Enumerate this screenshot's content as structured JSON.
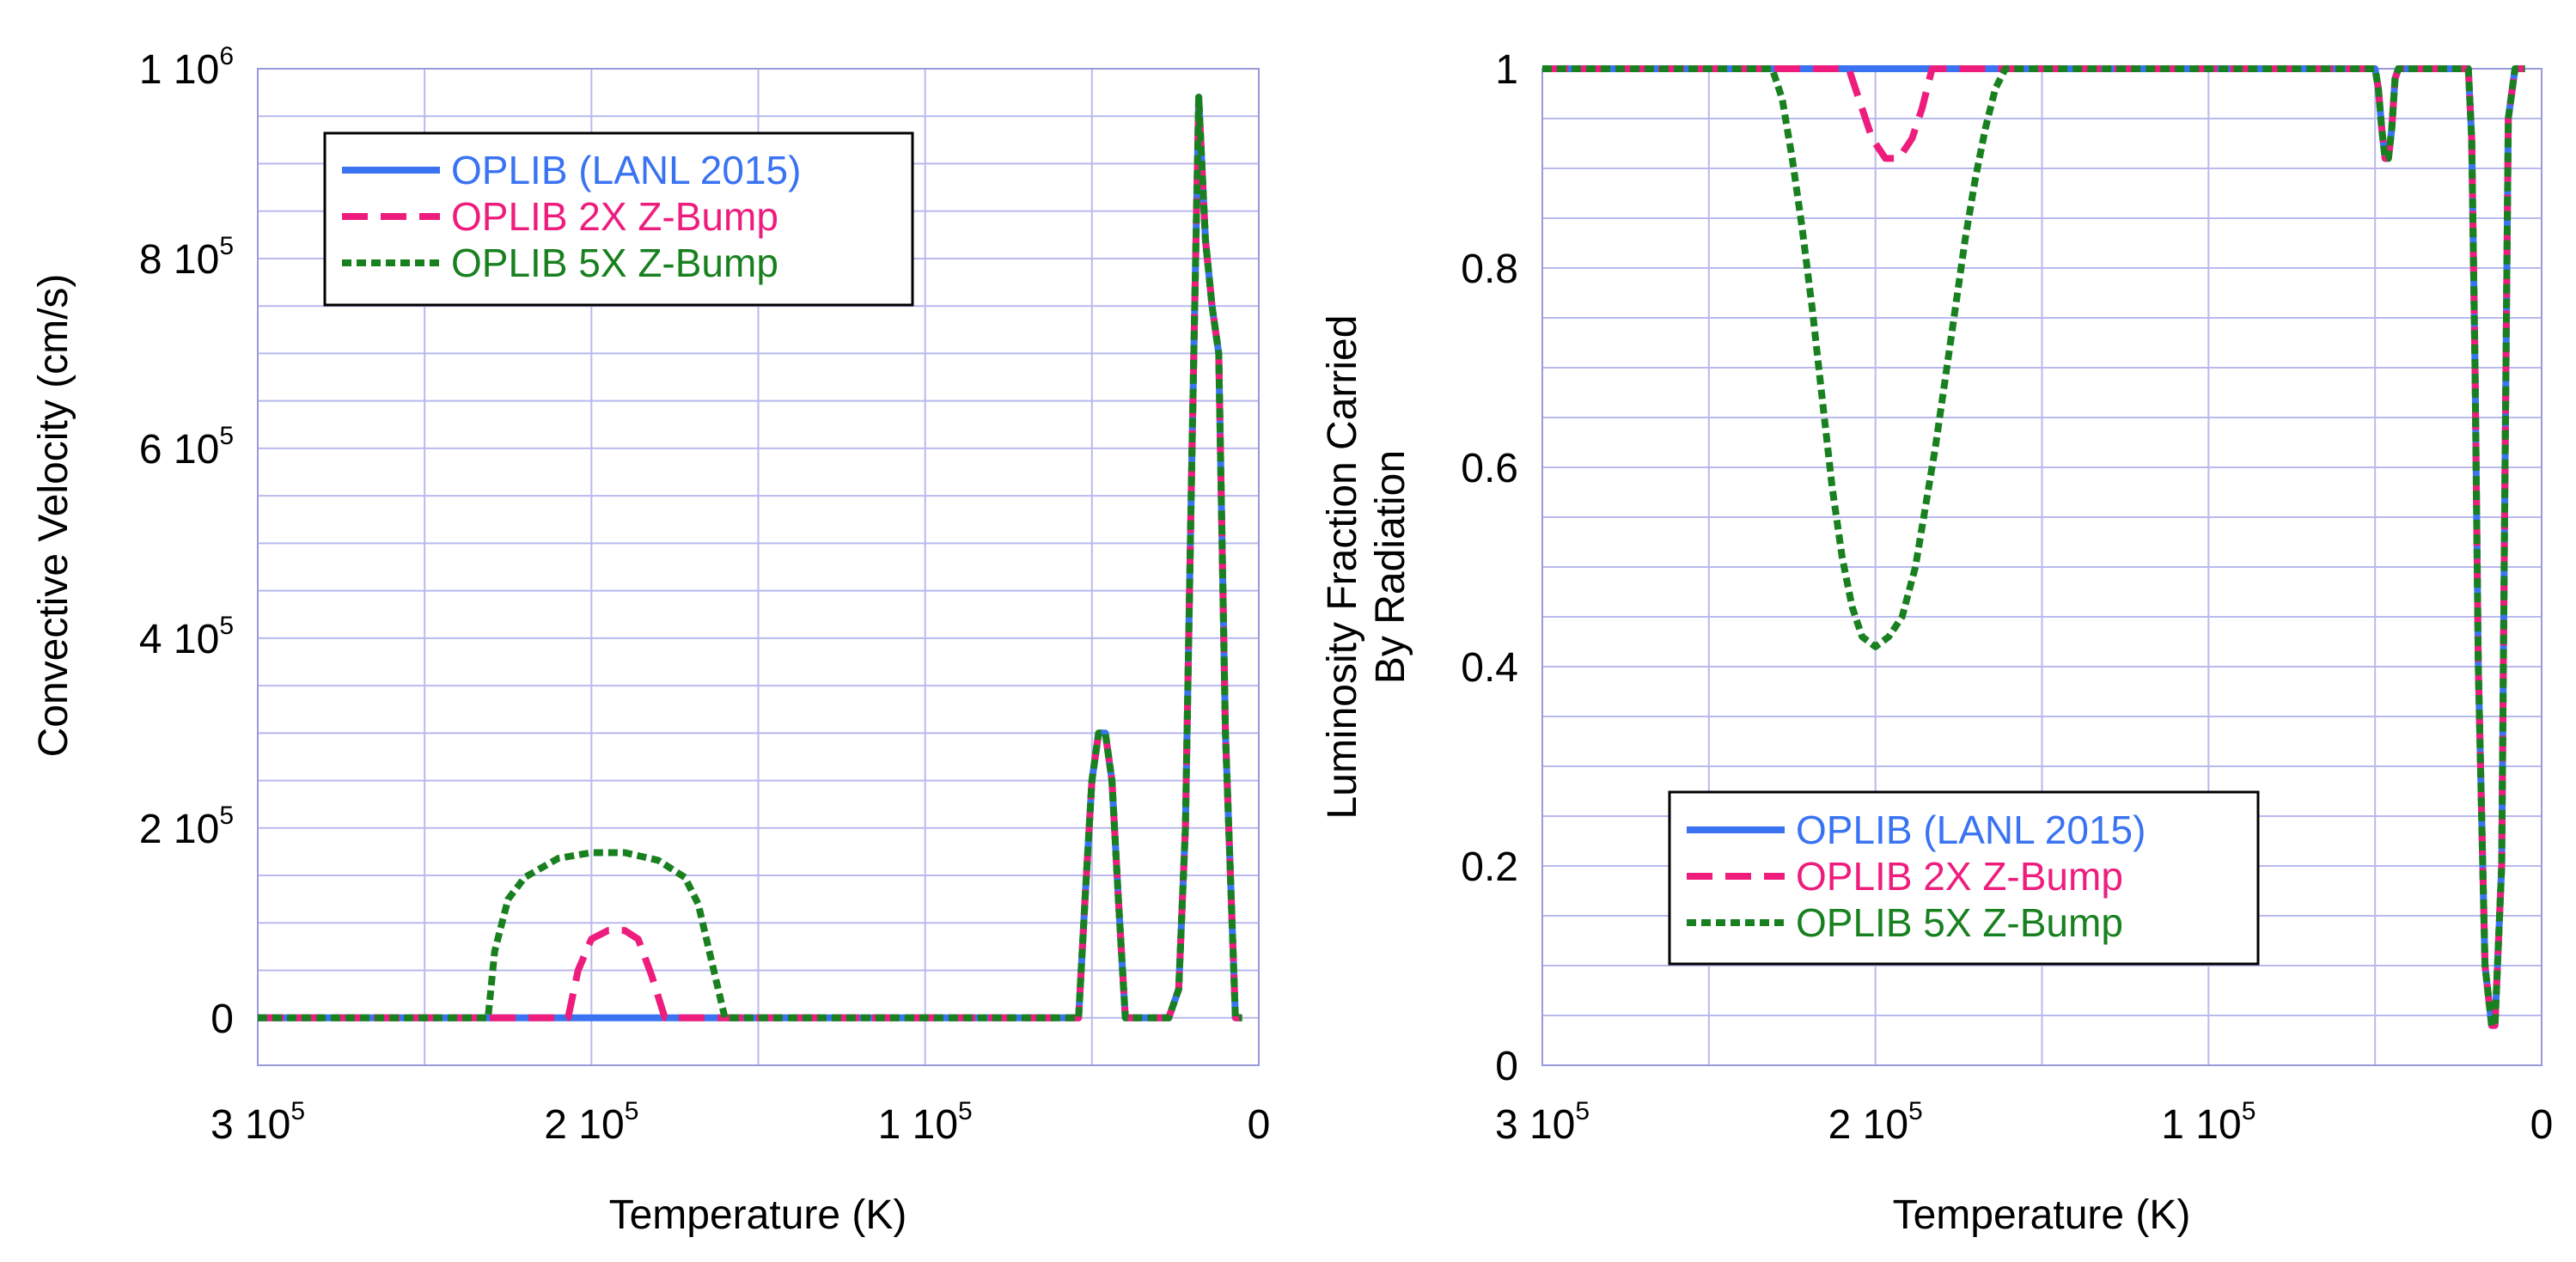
{
  "chart_data": [
    {
      "type": "line",
      "title": "",
      "xlabel": "Temperature (K)",
      "ylabel": "Convective Velocity (cm/s)",
      "xlim": [
        300000,
        0
      ],
      "ylim": [
        -50000,
        1000000
      ],
      "x_reversed": true,
      "grid": true,
      "legend_position": "top-left",
      "x_ticks": [
        {
          "value": 300000,
          "label": "3 10",
          "exp": "5"
        },
        {
          "value": 200000,
          "label": "2 10",
          "exp": "5"
        },
        {
          "value": 100000,
          "label": "1 10",
          "exp": "5"
        },
        {
          "value": 0,
          "label": "0",
          "exp": ""
        }
      ],
      "y_ticks": [
        {
          "value": 0,
          "label": "0",
          "exp": ""
        },
        {
          "value": 200000,
          "label": "2 10",
          "exp": "5"
        },
        {
          "value": 400000,
          "label": "4 10",
          "exp": "5"
        },
        {
          "value": 600000,
          "label": "6 10",
          "exp": "5"
        },
        {
          "value": 800000,
          "label": "8 10",
          "exp": "5"
        },
        {
          "value": 1000000,
          "label": "1 10",
          "exp": "6"
        }
      ],
      "series": [
        {
          "name": "OPLIB (LANL 2015)",
          "color": "#3a73f2",
          "style": "solid",
          "x": [
            300000,
            54000,
            52000,
            50000,
            48000,
            46000,
            44000,
            42000,
            40000,
            38000,
            27000,
            24000,
            22000,
            20000,
            18000,
            16000,
            14000,
            12000,
            10000,
            7000,
            5000
          ],
          "y": [
            0,
            0,
            130000,
            250000,
            300000,
            300000,
            250000,
            120000,
            0,
            0,
            0,
            30000,
            200000,
            600000,
            970000,
            820000,
            750000,
            700000,
            300000,
            0,
            0
          ]
        },
        {
          "name": "OPLIB 2X Z-Bump",
          "color": "#ee1d7d",
          "style": "dashed",
          "x": [
            300000,
            207000,
            204000,
            200000,
            195000,
            190000,
            186000,
            182000,
            178000,
            54000,
            52000,
            50000,
            48000,
            46000,
            44000,
            42000,
            40000,
            38000,
            27000,
            24000,
            22000,
            20000,
            18000,
            16000,
            14000,
            12000,
            10000,
            7000,
            5000
          ],
          "y": [
            0,
            0,
            50000,
            83000,
            92000,
            92000,
            83000,
            45000,
            0,
            0,
            130000,
            250000,
            300000,
            300000,
            250000,
            120000,
            0,
            0,
            0,
            30000,
            200000,
            600000,
            970000,
            820000,
            750000,
            700000,
            300000,
            0,
            0
          ]
        },
        {
          "name": "OPLIB 5X Z-Bump",
          "color": "#18801f",
          "style": "dotted",
          "x": [
            300000,
            231000,
            229000,
            225000,
            220000,
            210000,
            200000,
            190000,
            180000,
            172000,
            168000,
            164000,
            160000,
            54000,
            52000,
            50000,
            48000,
            46000,
            44000,
            42000,
            40000,
            38000,
            27000,
            24000,
            22000,
            20000,
            18000,
            16000,
            14000,
            12000,
            10000,
            7000,
            5000
          ],
          "y": [
            0,
            0,
            70000,
            125000,
            148000,
            168000,
            174000,
            174000,
            166000,
            148000,
            120000,
            60000,
            0,
            0,
            130000,
            250000,
            300000,
            300000,
            250000,
            120000,
            0,
            0,
            0,
            30000,
            200000,
            600000,
            970000,
            820000,
            750000,
            700000,
            300000,
            0,
            0
          ]
        }
      ]
    },
    {
      "type": "line",
      "title": "",
      "xlabel": "Temperature (K)",
      "ylabel": "Luminosity Fraction Carried",
      "ylabel2": "By Radiation",
      "xlim": [
        300000,
        0
      ],
      "ylim": [
        0,
        1
      ],
      "x_reversed": true,
      "grid": true,
      "legend_position": "bottom-center",
      "x_ticks": [
        {
          "value": 300000,
          "label": "3 10",
          "exp": "5"
        },
        {
          "value": 200000,
          "label": "2 10",
          "exp": "5"
        },
        {
          "value": 100000,
          "label": "1 10",
          "exp": "5"
        },
        {
          "value": 0,
          "label": "0",
          "exp": ""
        }
      ],
      "y_ticks": [
        {
          "value": 0,
          "label": "0",
          "exp": ""
        },
        {
          "value": 0.2,
          "label": "0.2",
          "exp": ""
        },
        {
          "value": 0.4,
          "label": "0.4",
          "exp": ""
        },
        {
          "value": 0.6,
          "label": "0.6",
          "exp": ""
        },
        {
          "value": 0.8,
          "label": "0.8",
          "exp": ""
        },
        {
          "value": 1,
          "label": "1",
          "exp": ""
        }
      ],
      "series": [
        {
          "name": "OPLIB (LANL 2015)",
          "color": "#3a73f2",
          "style": "solid",
          "x": [
            300000,
            50000,
            49000,
            48000,
            47000,
            46000,
            45000,
            44000,
            43000,
            22000,
            21000,
            20000,
            19000,
            17000,
            15000,
            14000,
            12000,
            11000,
            10000,
            8000,
            7000,
            5000
          ],
          "y": [
            1,
            1,
            0.98,
            0.94,
            0.91,
            0.91,
            0.94,
            0.99,
            1,
            1,
            0.93,
            0.7,
            0.4,
            0.1,
            0.04,
            0.04,
            0.2,
            0.6,
            0.95,
            1,
            1,
            1
          ]
        },
        {
          "name": "OPLIB 2X Z-Bump",
          "color": "#ee1d7d",
          "style": "dashed",
          "x": [
            300000,
            208000,
            205000,
            201000,
            197000,
            193000,
            189000,
            186000,
            183000,
            50000,
            49000,
            48000,
            47000,
            46000,
            45000,
            44000,
            43000,
            22000,
            21000,
            20000,
            19000,
            17000,
            15000,
            14000,
            12000,
            11000,
            10000,
            8000,
            7000,
            5000
          ],
          "y": [
            1,
            1,
            0.97,
            0.93,
            0.91,
            0.91,
            0.93,
            0.96,
            1,
            1,
            0.98,
            0.94,
            0.91,
            0.91,
            0.94,
            0.99,
            1,
            1,
            0.93,
            0.7,
            0.4,
            0.1,
            0.04,
            0.04,
            0.2,
            0.6,
            0.95,
            1,
            1,
            1
          ]
        },
        {
          "name": "OPLIB 5X Z-Bump",
          "color": "#18801f",
          "style": "dotted",
          "x": [
            300000,
            231000,
            228000,
            225000,
            222000,
            219000,
            216000,
            213000,
            210000,
            207000,
            204000,
            200000,
            196000,
            192000,
            188000,
            185000,
            182000,
            179000,
            176000,
            173000,
            170000,
            167000,
            164000,
            161000,
            50000,
            49000,
            48000,
            47000,
            46000,
            45000,
            44000,
            43000,
            22000,
            21000,
            20000,
            19000,
            17000,
            15000,
            14000,
            12000,
            11000,
            10000,
            8000,
            7000,
            5000
          ],
          "y": [
            1,
            1,
            0.97,
            0.91,
            0.84,
            0.76,
            0.67,
            0.58,
            0.51,
            0.46,
            0.43,
            0.42,
            0.43,
            0.45,
            0.5,
            0.56,
            0.62,
            0.69,
            0.76,
            0.83,
            0.89,
            0.94,
            0.98,
            1,
            1,
            0.98,
            0.94,
            0.91,
            0.91,
            0.94,
            0.99,
            1,
            1,
            0.93,
            0.7,
            0.4,
            0.1,
            0.04,
            0.04,
            0.2,
            0.6,
            0.95,
            1,
            1,
            1
          ]
        }
      ]
    }
  ]
}
